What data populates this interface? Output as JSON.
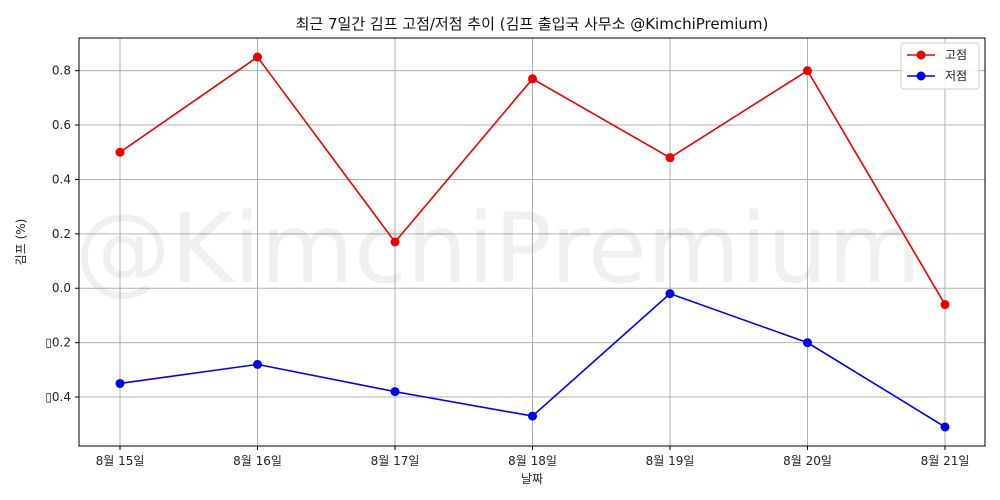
{
  "chart_data": {
    "type": "line",
    "title": "최근 7일간 김프 고점/저점 추이 (김프 출입국 사무소 @KimchiPremium)",
    "xlabel": "날짜",
    "ylabel": "김프 (%)",
    "categories": [
      "8월 15일",
      "8월 16일",
      "8월 17일",
      "8월 18일",
      "8월 19일",
      "8월 20일",
      "8월 21일"
    ],
    "series": [
      {
        "name": "고점",
        "color": "#ee0000",
        "values": [
          0.5,
          0.85,
          0.17,
          0.77,
          0.48,
          0.8,
          -0.06
        ]
      },
      {
        "name": "저점",
        "color": "#0000ee",
        "values": [
          -0.35,
          -0.28,
          -0.38,
          -0.47,
          -0.02,
          -0.2,
          -0.51
        ]
      }
    ],
    "ylim": [
      -0.58,
      0.92
    ],
    "yticks": [
      -0.4,
      -0.2,
      0.0,
      0.2,
      0.4,
      0.6,
      0.8
    ],
    "ytick_labels": [
      "▯0.4",
      "▯0.2",
      "0.0",
      "0.2",
      "0.4",
      "0.6",
      "0.8"
    ],
    "grid": true,
    "legend_position": "top-right",
    "watermark": "@KimchiPremium"
  }
}
